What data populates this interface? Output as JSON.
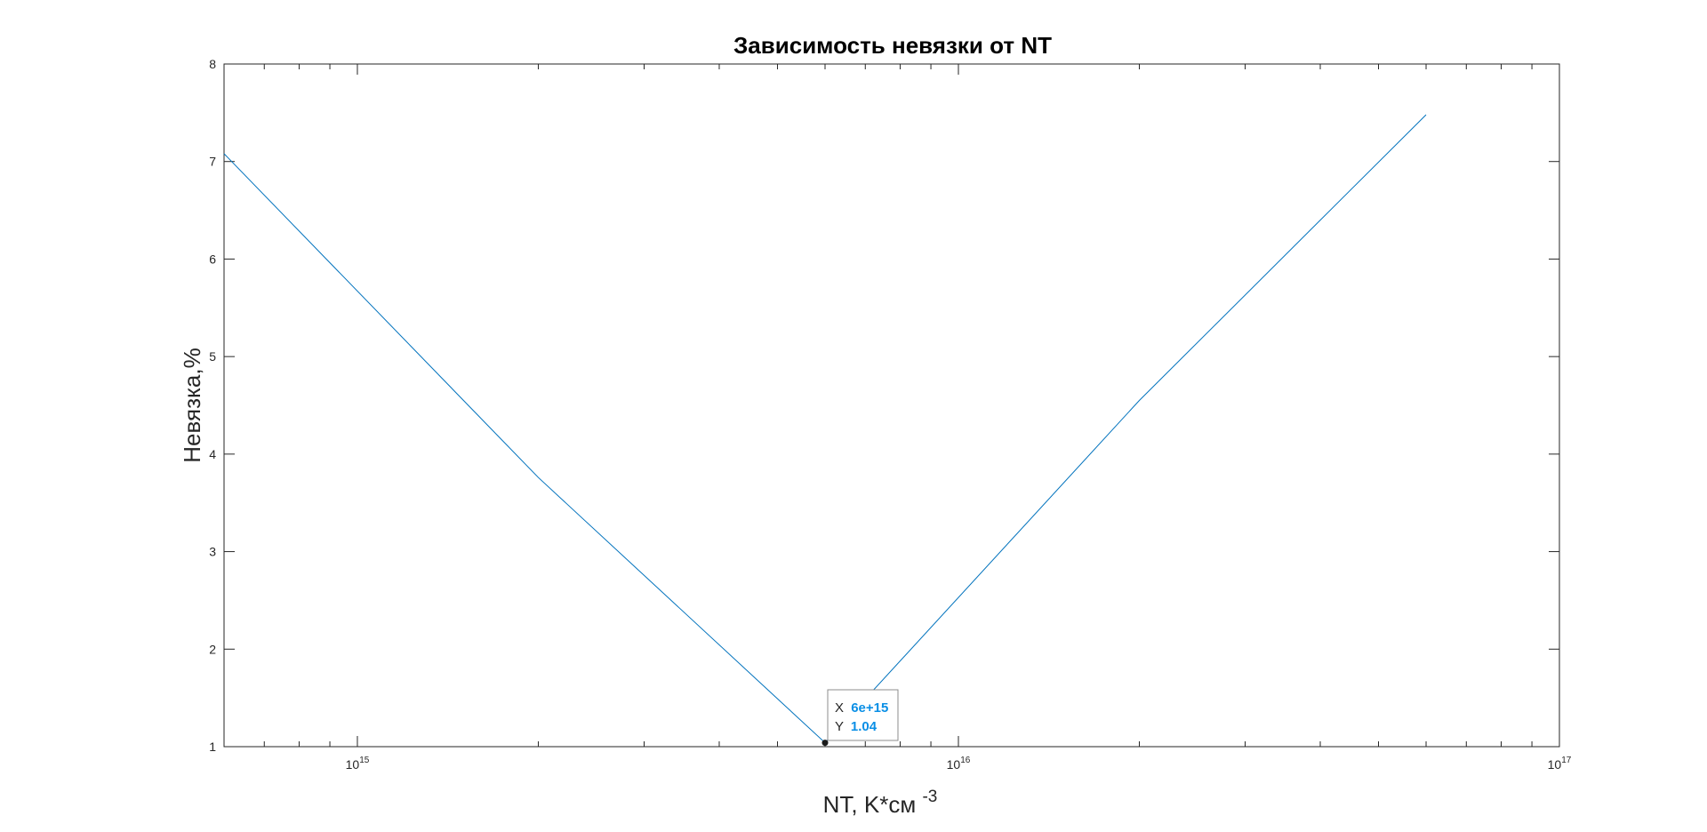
{
  "chart_data": {
    "type": "line",
    "title": "Зависимость невязки от NT",
    "xlabel": "NT, K*см",
    "xlabel_superscript": "-3",
    "ylabel": "Невязка,%",
    "x_scale": "log",
    "xlim": [
      600000000000000.0,
      1e+17
    ],
    "ylim": [
      1,
      8
    ],
    "x_ticks": [
      {
        "base": "10",
        "exp": "15",
        "value": 1000000000000000.0
      },
      {
        "base": "10",
        "exp": "16",
        "value": 1e+16
      },
      {
        "base": "10",
        "exp": "17",
        "value": 1e+17
      }
    ],
    "y_ticks": [
      "1",
      "2",
      "3",
      "4",
      "5",
      "6",
      "7",
      "8"
    ],
    "grid": false,
    "series": [
      {
        "color": "#0072bd",
        "x": [
          600000000000000.0,
          2000000000000000.0,
          6000000000000000.0,
          2e+16,
          6e+16
        ],
        "y": [
          7.08,
          3.76,
          1.04,
          4.55,
          7.48
        ]
      }
    ],
    "datatip": {
      "x": 6000000000000000.0,
      "y": 1.04,
      "x_label": "X",
      "y_label": "Y",
      "x_text": "6e+15",
      "y_text": "1.04"
    }
  }
}
